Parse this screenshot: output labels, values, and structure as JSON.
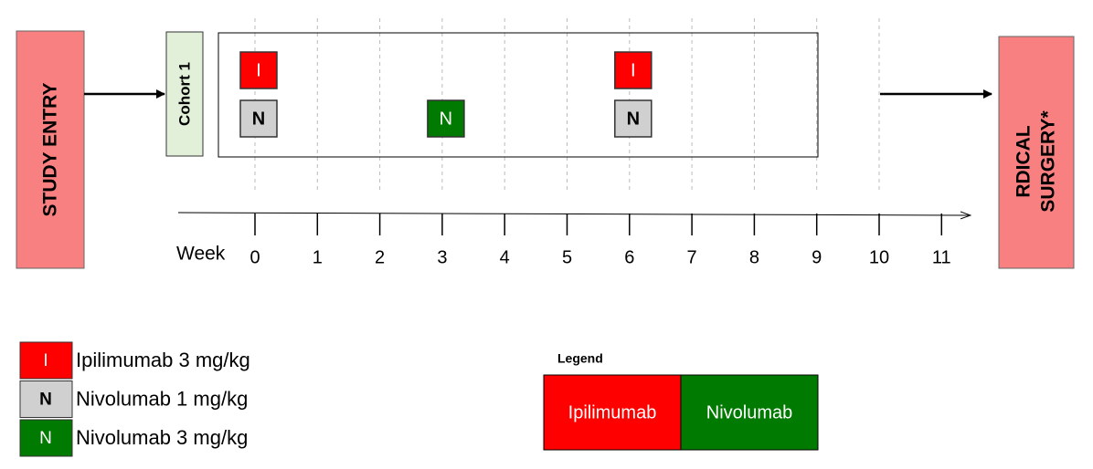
{
  "study_entry": "STUDY ENTRY",
  "cohort": "Cohort 1",
  "doses": [
    {
      "label": "I"
    },
    {
      "label": "N"
    },
    {
      "label": "N"
    },
    {
      "label": "I"
    },
    {
      "label": "N"
    }
  ],
  "axis": {
    "label": "Week",
    "weeks": [
      "0",
      "1",
      "2",
      "3",
      "4",
      "5",
      "6",
      "7",
      "8",
      "9",
      "10",
      "11"
    ]
  },
  "surgery": [
    "RDICAL",
    "SURGERY*"
  ],
  "key": [
    {
      "symbol": "I",
      "text": "Ipilimumab 3 mg/kg"
    },
    {
      "symbol": "N",
      "text": "Nivolumab 1 mg/kg"
    },
    {
      "symbol": "N",
      "text": "Nivolumab 3 mg/kg"
    }
  ],
  "legend": {
    "title": "Legend",
    "items": [
      "Ipilimumab",
      "Nivolumab"
    ]
  }
}
